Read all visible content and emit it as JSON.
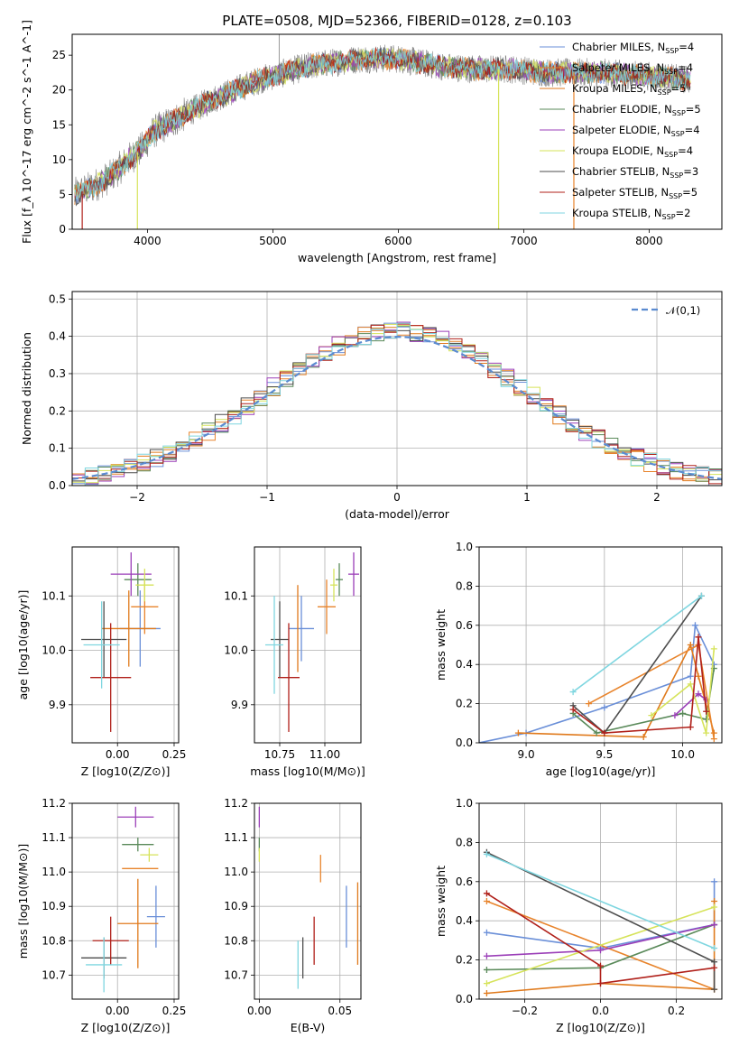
{
  "title": "PLATE=0508, MJD=52366, FIBERID=0128, z=0.103",
  "models": [
    {
      "name": "Chabrier MILES",
      "nssp": "4",
      "color": "#6a8fd8"
    },
    {
      "name": "Salpeter MILES",
      "nssp": "4",
      "color": "#e8842c"
    },
    {
      "name": "Kroupa MILES",
      "nssp": "5",
      "color": "#e07a1c"
    },
    {
      "name": "Chabrier ELODIE",
      "nssp": "5",
      "color": "#5a8a5a"
    },
    {
      "name": "Salpeter ELODIE",
      "nssp": "4",
      "color": "#9b3fb8"
    },
    {
      "name": "Kroupa ELODIE",
      "nssp": "4",
      "color": "#d6e35a"
    },
    {
      "name": "Chabrier STELIB",
      "nssp": "3",
      "color": "#4d4d4d"
    },
    {
      "name": "Salpeter STELIB",
      "nssp": "5",
      "color": "#b0201a"
    },
    {
      "name": "Kroupa STELIB",
      "nssp": "2",
      "color": "#7fd6e0"
    }
  ],
  "chart_data": [
    {
      "id": "spectrum",
      "type": "line",
      "xlabel": "wavelength [Angstrom, rest frame]",
      "ylabel": "Flux [f_λ 10^-17 erg cm^-2 s^-1 A^-1]",
      "xlim": [
        3400,
        8580
      ],
      "ylim": [
        0,
        28
      ],
      "xticks": [
        4000,
        5000,
        6000,
        7000,
        8000
      ],
      "yticks": [
        0,
        5,
        10,
        15,
        20,
        25
      ],
      "continuum": [
        [
          3420,
          5.0
        ],
        [
          3550,
          6.0
        ],
        [
          3700,
          7.5
        ],
        [
          3850,
          10.0
        ],
        [
          3950,
          11.5
        ],
        [
          4050,
          14.0
        ],
        [
          4200,
          15.5
        ],
        [
          4350,
          17.0
        ],
        [
          4500,
          18.5
        ],
        [
          4700,
          20.0
        ],
        [
          4900,
          21.5
        ],
        [
          5100,
          22.5
        ],
        [
          5300,
          23.5
        ],
        [
          5500,
          24.0
        ],
        [
          5700,
          24.5
        ],
        [
          6000,
          24.5
        ],
        [
          6300,
          23.5
        ],
        [
          6600,
          23.0
        ],
        [
          6900,
          23.0
        ],
        [
          7200,
          22.5
        ],
        [
          7600,
          22.5
        ],
        [
          8000,
          22.0
        ],
        [
          8300,
          21.5
        ]
      ]
    },
    {
      "id": "residuals",
      "type": "bar",
      "title": "",
      "xlabel": "(data-model)/error",
      "ylabel": "Normed distribution",
      "xlim": [
        -2.5,
        2.5
      ],
      "ylim": [
        0,
        0.52
      ],
      "xticks": [
        -2,
        -1,
        0,
        1,
        2
      ],
      "yticks": [
        0.0,
        0.1,
        0.2,
        0.3,
        0.4,
        0.5
      ],
      "legend": "𝒩(0,1)",
      "legend_position": "top-right",
      "grid": true
    },
    {
      "id": "age-vs-Z",
      "type": "scatter",
      "xlabel": "Z [log10(Z/Z⊙)]",
      "ylabel": "age [log10(age/yr)]",
      "xlim": [
        -0.2,
        0.27
      ],
      "ylim": [
        9.83,
        10.19
      ],
      "xticks": [
        0.0,
        0.25
      ],
      "yticks": [
        9.9,
        10.0,
        10.1
      ],
      "points": [
        {
          "model": 0,
          "x": 0.1,
          "y": 10.04,
          "xerr": 0.09,
          "yerr": 0.07
        },
        {
          "model": 1,
          "x": 0.12,
          "y": 10.08,
          "xerr": 0.06,
          "yerr": 0.05
        },
        {
          "model": 2,
          "x": 0.05,
          "y": 10.04,
          "xerr": 0.12,
          "yerr": 0.07
        },
        {
          "model": 3,
          "x": 0.09,
          "y": 10.13,
          "xerr": 0.06,
          "yerr": 0.03
        },
        {
          "model": 4,
          "x": 0.06,
          "y": 10.14,
          "xerr": 0.09,
          "yerr": 0.04
        },
        {
          "model": 5,
          "x": 0.12,
          "y": 10.12,
          "xerr": 0.04,
          "yerr": 0.03
        },
        {
          "model": 6,
          "x": -0.06,
          "y": 10.02,
          "xerr": 0.1,
          "yerr": 0.07
        },
        {
          "model": 7,
          "x": -0.03,
          "y": 9.95,
          "xerr": 0.09,
          "yerr": 0.1
        },
        {
          "model": 8,
          "x": -0.07,
          "y": 10.01,
          "xerr": 0.08,
          "yerr": 0.08
        }
      ]
    },
    {
      "id": "age-vs-mass",
      "type": "scatter",
      "xlabel": "mass [log10(M/M⊙)]",
      "ylabel": "",
      "xlim": [
        10.61,
        11.2
      ],
      "ylim": [
        9.83,
        10.19
      ],
      "xticks": [
        10.75,
        11.0
      ],
      "yticks": [
        9.9,
        10.0,
        10.1
      ],
      "points": [
        {
          "model": 0,
          "x": 10.87,
          "y": 10.04,
          "xerr": 0.07,
          "yerr": 0.06
        },
        {
          "model": 1,
          "x": 11.01,
          "y": 10.08,
          "xerr": 0.05,
          "yerr": 0.05
        },
        {
          "model": 2,
          "x": 10.85,
          "y": 10.04,
          "xerr": 0.0,
          "yerr": 0.08
        },
        {
          "model": 3,
          "x": 11.08,
          "y": 10.13,
          "xerr": 0.02,
          "yerr": 0.03
        },
        {
          "model": 4,
          "x": 11.16,
          "y": 10.14,
          "xerr": 0.03,
          "yerr": 0.04
        },
        {
          "model": 5,
          "x": 11.05,
          "y": 10.12,
          "xerr": 0.02,
          "yerr": 0.03
        },
        {
          "model": 6,
          "x": 10.75,
          "y": 10.02,
          "xerr": 0.05,
          "yerr": 0.07
        },
        {
          "model": 7,
          "x": 10.8,
          "y": 9.95,
          "xerr": 0.06,
          "yerr": 0.1
        },
        {
          "model": 8,
          "x": 10.72,
          "y": 10.01,
          "xerr": 0.05,
          "yerr": 0.09
        }
      ]
    },
    {
      "id": "mass-weight-vs-age",
      "type": "line",
      "xlabel": "age [log10(age/yr)]",
      "ylabel": "mass weight",
      "xlim": [
        8.7,
        10.25
      ],
      "ylim": [
        0,
        1.0
      ],
      "xticks": [
        9.0,
        9.5,
        10.0
      ],
      "yticks": [
        0.0,
        0.2,
        0.4,
        0.6,
        0.8,
        1.0
      ],
      "grid": true,
      "series": [
        {
          "model": 0,
          "x": [
            8.7,
            9.0,
            9.5,
            10.05,
            10.08,
            10.2
          ],
          "y": [
            0.0,
            0.05,
            0.18,
            0.34,
            0.6,
            0.4
          ]
        },
        {
          "model": 2,
          "x": [
            8.95,
            9.75,
            10.05,
            10.1,
            10.2
          ],
          "y": [
            0.05,
            0.03,
            0.5,
            0.34,
            0.05
          ]
        },
        {
          "model": 3,
          "x": [
            9.3,
            9.45,
            10.0,
            10.15,
            10.2
          ],
          "y": [
            0.15,
            0.05,
            0.15,
            0.12,
            0.38
          ]
        },
        {
          "model": 4,
          "x": [
            9.95,
            10.1,
            10.15
          ],
          "y": [
            0.14,
            0.25,
            0.22
          ]
        },
        {
          "model": 5,
          "x": [
            9.8,
            10.05,
            10.15,
            10.2
          ],
          "y": [
            0.14,
            0.3,
            0.05,
            0.48
          ]
        },
        {
          "model": 1,
          "x": [
            9.4,
            10.1,
            10.2
          ],
          "y": [
            0.2,
            0.5,
            0.02
          ]
        },
        {
          "model": 6,
          "x": [
            9.3,
            9.5,
            10.12
          ],
          "y": [
            0.19,
            0.05,
            0.75
          ]
        },
        {
          "model": 7,
          "x": [
            9.3,
            9.5,
            10.05,
            10.1,
            10.15
          ],
          "y": [
            0.17,
            0.05,
            0.08,
            0.54,
            0.16
          ]
        },
        {
          "model": 8,
          "x": [
            9.3,
            10.12
          ],
          "y": [
            0.26,
            0.75
          ]
        }
      ]
    },
    {
      "id": "mass-vs-Z",
      "type": "scatter",
      "xlabel": "Z [log10(Z/Z⊙)]",
      "ylabel": "mass [log10(M/M⊙)]",
      "xlim": [
        -0.2,
        0.27
      ],
      "ylim": [
        10.63,
        11.2
      ],
      "xticks": [
        0.0,
        0.25
      ],
      "yticks": [
        10.7,
        10.8,
        10.9,
        11.0,
        11.1,
        11.2
      ],
      "points": [
        {
          "model": 0,
          "x": 0.17,
          "y": 10.87,
          "xerr": 0.04,
          "yerr": 0.09
        },
        {
          "model": 1,
          "x": 0.1,
          "y": 11.01,
          "xerr": 0.08,
          "yerr": 0.0
        },
        {
          "model": 2,
          "x": 0.09,
          "y": 10.85,
          "xerr": 0.09,
          "yerr": 0.13
        },
        {
          "model": 3,
          "x": 0.09,
          "y": 11.08,
          "xerr": 0.07,
          "yerr": 0.02
        },
        {
          "model": 4,
          "x": 0.08,
          "y": 11.16,
          "xerr": 0.08,
          "yerr": 0.03
        },
        {
          "model": 5,
          "x": 0.14,
          "y": 11.05,
          "xerr": 0.04,
          "yerr": 0.02
        },
        {
          "model": 6,
          "x": -0.06,
          "y": 10.75,
          "xerr": 0.1,
          "yerr": 0.06
        },
        {
          "model": 7,
          "x": -0.03,
          "y": 10.8,
          "xerr": 0.08,
          "yerr": 0.07
        },
        {
          "model": 8,
          "x": -0.06,
          "y": 10.73,
          "xerr": 0.08,
          "yerr": 0.08
        }
      ]
    },
    {
      "id": "mass-vs-EBV",
      "type": "scatter",
      "xlabel": "E(B-V)",
      "ylabel": "",
      "xlim": [
        -0.003,
        0.063
      ],
      "ylim": [
        10.63,
        11.2
      ],
      "xticks": [
        0.0,
        0.05
      ],
      "yticks": [
        10.7,
        10.8,
        10.9,
        11.0,
        11.1,
        11.2
      ],
      "points": [
        {
          "model": 0,
          "x": 0.054,
          "y": 10.87,
          "xerr": 0,
          "yerr": 0.09
        },
        {
          "model": 1,
          "x": 0.038,
          "y": 11.01,
          "xerr": 0,
          "yerr": 0.04
        },
        {
          "model": 2,
          "x": 0.061,
          "y": 10.85,
          "xerr": 0,
          "yerr": 0.12
        },
        {
          "model": 3,
          "x": 0.0,
          "y": 11.08,
          "xerr": 0,
          "yerr": 0.02
        },
        {
          "model": 4,
          "x": 0.0,
          "y": 11.16,
          "xerr": 0,
          "yerr": 0.03
        },
        {
          "model": 5,
          "x": 0.0,
          "y": 11.05,
          "xerr": 0,
          "yerr": 0.02
        },
        {
          "model": 6,
          "x": 0.027,
          "y": 10.75,
          "xerr": 0,
          "yerr": 0.06
        },
        {
          "model": 7,
          "x": 0.034,
          "y": 10.8,
          "xerr": 0,
          "yerr": 0.07
        },
        {
          "model": 8,
          "x": 0.024,
          "y": 10.73,
          "xerr": 0,
          "yerr": 0.07
        }
      ]
    },
    {
      "id": "mass-weight-vs-Z",
      "type": "line",
      "xlabel": "Z [log10(Z/Z⊙)]",
      "ylabel": "mass weight",
      "xlim": [
        -0.32,
        0.32
      ],
      "ylim": [
        0,
        1.0
      ],
      "xticks": [
        -0.2,
        0.0,
        0.2
      ],
      "yticks": [
        0.0,
        0.2,
        0.4,
        0.6,
        0.8,
        1.0
      ],
      "grid": true,
      "series": [
        {
          "model": 0,
          "x": [
            -0.3,
            0.0,
            0.3,
            0.3
          ],
          "y": [
            0.34,
            0.26,
            0.38,
            0.6
          ]
        },
        {
          "model": 1,
          "x": [
            -0.3,
            0.3
          ],
          "y": [
            0.5,
            0.05
          ]
        },
        {
          "model": 2,
          "x": [
            -0.3,
            0.0,
            0.3,
            0.3
          ],
          "y": [
            0.03,
            0.08,
            0.05,
            0.5
          ]
        },
        {
          "model": 3,
          "x": [
            -0.3,
            0.0,
            0.3
          ],
          "y": [
            0.15,
            0.16,
            0.38
          ]
        },
        {
          "model": 4,
          "x": [
            -0.3,
            0.0,
            0.3
          ],
          "y": [
            0.22,
            0.25,
            0.38
          ]
        },
        {
          "model": 5,
          "x": [
            -0.3,
            0.3
          ],
          "y": [
            0.08,
            0.47
          ]
        },
        {
          "model": 6,
          "x": [
            -0.3,
            0.3,
            0.3
          ],
          "y": [
            0.75,
            0.19,
            0.05
          ]
        },
        {
          "model": 7,
          "x": [
            -0.3,
            0.0,
            0.0,
            0.3
          ],
          "y": [
            0.54,
            0.17,
            0.08,
            0.16
          ]
        },
        {
          "model": 8,
          "x": [
            -0.3,
            0.3
          ],
          "y": [
            0.74,
            0.26
          ]
        }
      ]
    }
  ]
}
